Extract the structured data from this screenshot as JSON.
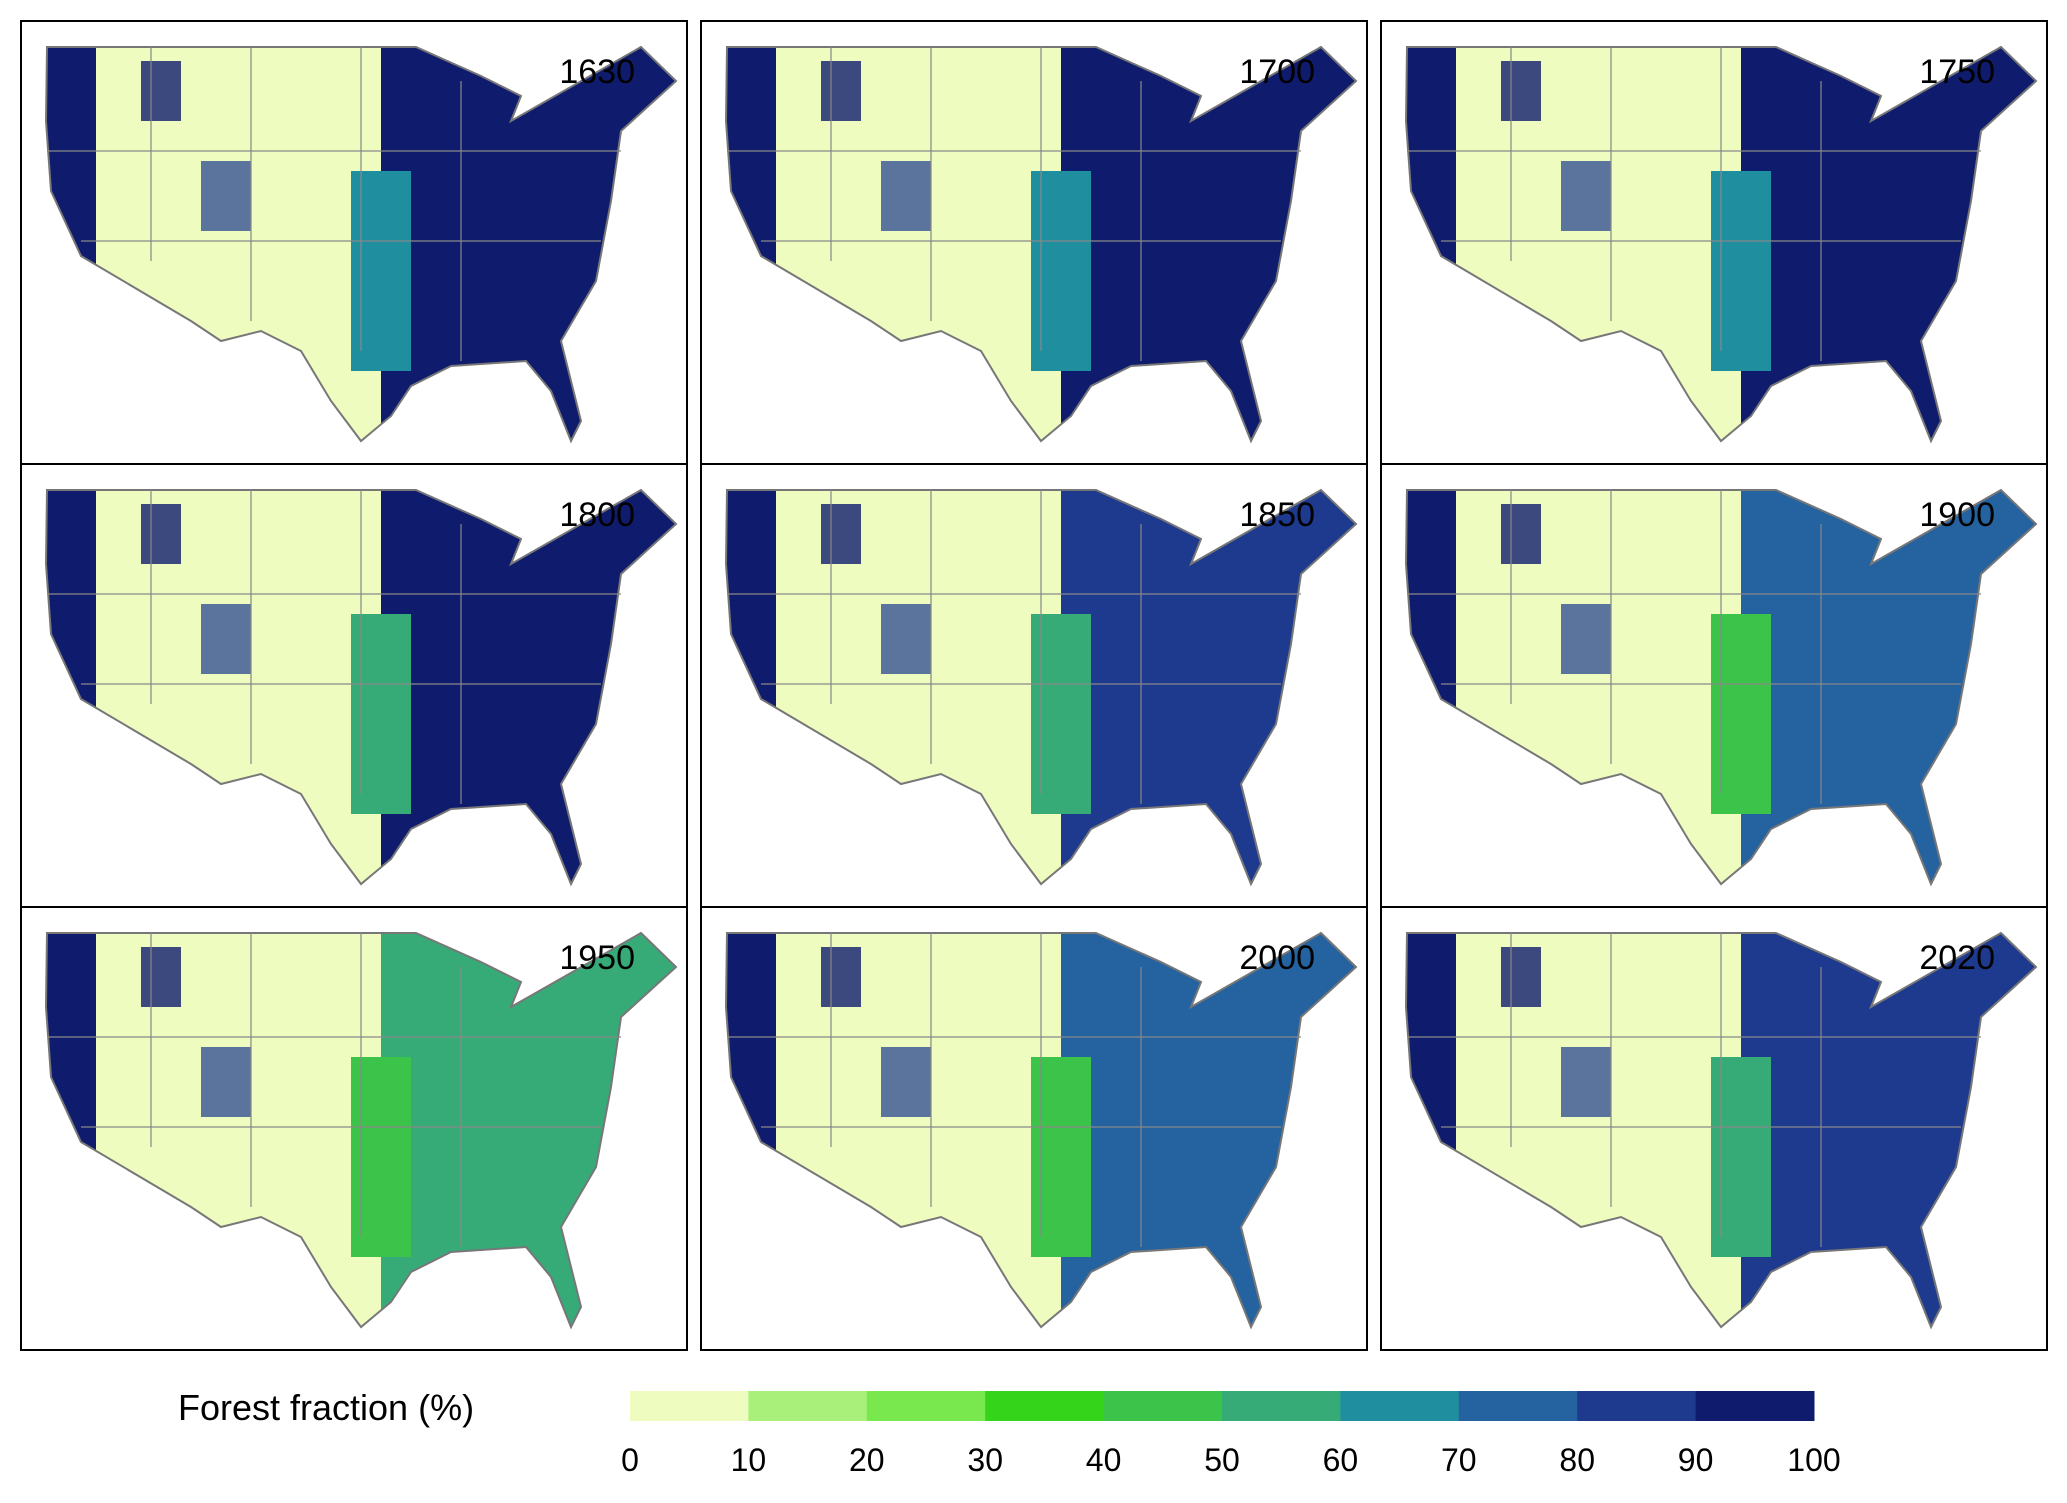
{
  "panels": [
    {
      "year": "1630"
    },
    {
      "year": "1700"
    },
    {
      "year": "1750"
    },
    {
      "year": "1800"
    },
    {
      "year": "1850"
    },
    {
      "year": "1900"
    },
    {
      "year": "1950"
    },
    {
      "year": "2000"
    },
    {
      "year": "2020"
    }
  ],
  "legend": {
    "title": "Forest  fraction (%)",
    "ticks": [
      0,
      10,
      20,
      30,
      40,
      50,
      60,
      70,
      80,
      90,
      100
    ],
    "colors": [
      "#eefcc0",
      "#a8f07a",
      "#78e84e",
      "#33d41a",
      "#3cc44a",
      "#36ab78",
      "#1f8fa0",
      "#2563a0",
      "#1d3a8f",
      "#0f1c6e"
    ]
  }
}
